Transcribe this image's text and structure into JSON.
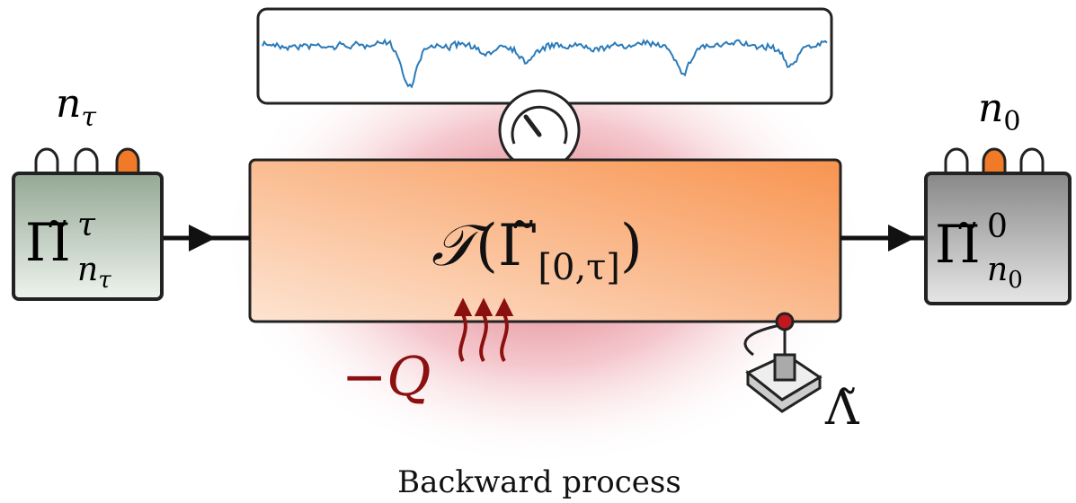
{
  "left": {
    "count": "n",
    "count_sub": "τ",
    "state": "Π̃",
    "state_sup": "τ",
    "state_sub": "n",
    "state_sub_sub": "τ"
  },
  "right": {
    "count": "n",
    "count_sub": "0",
    "state": "Π̃",
    "state_sup": "0",
    "state_sub": "n",
    "state_sub_sub": "0"
  },
  "process": {
    "operator": "𝒯",
    "open": "(",
    "path": "Γ̃",
    "path_sub": "[0,τ]",
    "close": ")"
  },
  "heat": "−Q",
  "protocol": "Λ̃",
  "caption": "Backward process"
}
